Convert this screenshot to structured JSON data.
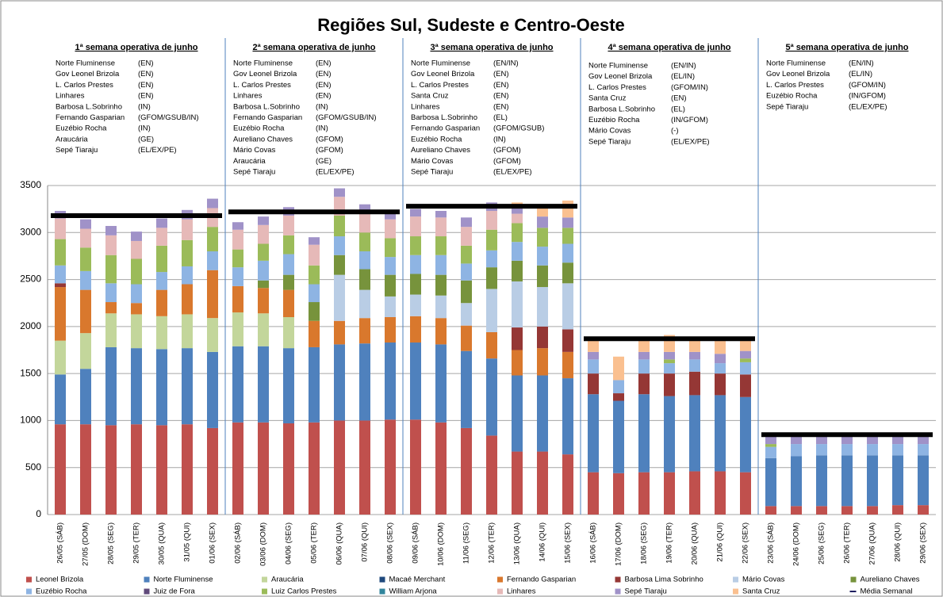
{
  "chart_data": {
    "type": "stacked_bar",
    "title": "Regiões Sul, Sudeste e Centro-Oeste",
    "categories": [
      "26/05 (SÁB)",
      "27/05 (DOM)",
      "28/05 (SEG)",
      "29/05 (TER)",
      "30/05 (QUA)",
      "31/05 (QUI)",
      "01/06 (SEX)",
      "02/06 (SÁB)",
      "03/06 (DOM)",
      "04/06 (SEG)",
      "05/06 (TER)",
      "06/06 (QUA)",
      "07/06 (QUI)",
      "08/06 (SEX)",
      "09/06 (SÁB)",
      "10/06 (DOM)",
      "11/06 (SEG)",
      "12/06 (TER)",
      "13/06 (QUA)",
      "14/06 (QUI)",
      "15/06 (SEX)",
      "16/06 (SÁB)",
      "17/06 (DOM)",
      "18/06 (SEG)",
      "19/06 (TER)",
      "20/06 (QUA)",
      "21/06 (QUI)",
      "22/06 (SEX)",
      "23/06 (SÁB)",
      "24/06 (DOM)",
      "25/06 (SEG)",
      "26/06 (TER)",
      "27/06 (QUA)",
      "28/06 (QUI)",
      "29/06 (SEX)"
    ],
    "series": [
      {
        "name": "Leonel Brizola",
        "color": "#c0504d",
        "values": [
          960,
          960,
          950,
          960,
          950,
          960,
          920,
          980,
          980,
          970,
          980,
          1000,
          1000,
          1010,
          1010,
          980,
          920,
          840,
          670,
          670,
          640,
          450,
          440,
          450,
          450,
          460,
          460,
          450,
          90,
          90,
          90,
          90,
          90,
          100,
          100
        ]
      },
      {
        "name": "Norte Fluminense",
        "color": "#4f81bd",
        "values": [
          530,
          590,
          830,
          810,
          810,
          810,
          810,
          810,
          810,
          800,
          800,
          810,
          820,
          820,
          820,
          830,
          820,
          820,
          810,
          810,
          810,
          830,
          770,
          830,
          810,
          810,
          810,
          800,
          510,
          530,
          540,
          540,
          540,
          530,
          530
        ]
      },
      {
        "name": "Araucária",
        "color": "#c3d69b",
        "values": [
          360,
          380,
          360,
          360,
          350,
          360,
          360,
          360,
          350,
          330,
          0,
          0,
          0,
          0,
          0,
          0,
          0,
          0,
          0,
          0,
          0,
          0,
          0,
          0,
          0,
          0,
          0,
          0,
          0,
          0,
          0,
          0,
          0,
          0,
          0
        ]
      },
      {
        "name": "Macaé Merchant",
        "color": "#1f497d",
        "values": [
          0,
          0,
          0,
          0,
          0,
          0,
          0,
          0,
          0,
          0,
          0,
          0,
          0,
          0,
          0,
          0,
          0,
          0,
          0,
          0,
          0,
          0,
          0,
          0,
          0,
          0,
          0,
          0,
          0,
          0,
          0,
          0,
          0,
          0,
          0
        ]
      },
      {
        "name": "Fernando Gasparian",
        "color": "#d9782d",
        "values": [
          570,
          460,
          120,
          120,
          280,
          320,
          510,
          280,
          270,
          290,
          280,
          250,
          270,
          270,
          280,
          280,
          270,
          280,
          270,
          290,
          280,
          0,
          0,
          0,
          0,
          0,
          0,
          0,
          0,
          0,
          0,
          0,
          0,
          0,
          0
        ]
      },
      {
        "name": "Barbosa Lima Sobrinho",
        "color": "#953735",
        "values": [
          40,
          0,
          0,
          0,
          0,
          0,
          0,
          0,
          0,
          0,
          0,
          0,
          0,
          0,
          0,
          0,
          0,
          0,
          240,
          230,
          240,
          220,
          80,
          220,
          240,
          250,
          230,
          240,
          0,
          0,
          0,
          0,
          0,
          0,
          0
        ]
      },
      {
        "name": "Mário Covas",
        "color": "#b9cde5",
        "values": [
          0,
          0,
          0,
          0,
          0,
          0,
          0,
          0,
          0,
          0,
          0,
          490,
          300,
          220,
          230,
          240,
          240,
          460,
          490,
          420,
          490,
          0,
          0,
          0,
          0,
          0,
          0,
          0,
          0,
          0,
          0,
          0,
          0,
          0,
          0
        ]
      },
      {
        "name": "Aureliano Chaves",
        "color": "#77933c",
        "values": [
          0,
          0,
          0,
          0,
          0,
          0,
          0,
          0,
          80,
          160,
          200,
          210,
          220,
          230,
          220,
          220,
          240,
          230,
          220,
          230,
          220,
          0,
          0,
          0,
          0,
          0,
          0,
          0,
          0,
          0,
          0,
          0,
          0,
          0,
          0
        ]
      },
      {
        "name": "Euzébio Rocha",
        "color": "#8eb4e3",
        "values": [
          190,
          200,
          200,
          200,
          190,
          190,
          200,
          200,
          210,
          220,
          190,
          200,
          190,
          190,
          200,
          210,
          180,
          180,
          200,
          200,
          200,
          150,
          140,
          150,
          110,
          130,
          110,
          130,
          120,
          130,
          120,
          120,
          120,
          120,
          120
        ]
      },
      {
        "name": "Juiz de Fora",
        "color": "#604a7b",
        "values": [
          0,
          0,
          0,
          0,
          0,
          0,
          0,
          0,
          0,
          0,
          0,
          0,
          0,
          0,
          0,
          0,
          0,
          0,
          0,
          0,
          0,
          0,
          0,
          0,
          0,
          0,
          0,
          0,
          0,
          0,
          0,
          0,
          0,
          0,
          0
        ]
      },
      {
        "name": "Luiz Carlos Prestes",
        "color": "#9bbb59",
        "values": [
          280,
          250,
          300,
          270,
          280,
          280,
          260,
          190,
          180,
          200,
          200,
          220,
          200,
          200,
          200,
          200,
          190,
          220,
          200,
          200,
          170,
          0,
          0,
          0,
          40,
          0,
          0,
          40,
          30,
          0,
          0,
          0,
          0,
          0,
          0
        ]
      },
      {
        "name": "William Arjona",
        "color": "#31859c",
        "values": [
          0,
          0,
          0,
          0,
          0,
          0,
          0,
          0,
          0,
          0,
          0,
          0,
          0,
          0,
          0,
          0,
          0,
          0,
          0,
          0,
          0,
          0,
          0,
          0,
          0,
          0,
          0,
          0,
          0,
          0,
          0,
          0,
          0,
          0,
          0
        ]
      },
      {
        "name": "Linhares",
        "color": "#e6b9b8",
        "values": [
          220,
          200,
          210,
          190,
          190,
          220,
          200,
          210,
          200,
          210,
          220,
          200,
          210,
          200,
          210,
          200,
          200,
          200,
          100,
          0,
          0,
          0,
          0,
          0,
          0,
          0,
          0,
          0,
          0,
          0,
          0,
          0,
          0,
          0,
          0
        ]
      },
      {
        "name": "Sepé Tiaraju",
        "color": "#a092c8",
        "values": [
          80,
          100,
          100,
          100,
          100,
          100,
          100,
          80,
          90,
          90,
          80,
          90,
          90,
          70,
          80,
          70,
          100,
          90,
          60,
          120,
          110,
          80,
          0,
          80,
          80,
          80,
          100,
          80,
          80,
          80,
          80,
          80,
          80,
          80,
          80
        ]
      },
      {
        "name": "Santa Cruz",
        "color": "#fac090",
        "values": [
          0,
          0,
          0,
          0,
          0,
          0,
          0,
          0,
          0,
          0,
          0,
          0,
          0,
          0,
          0,
          0,
          0,
          0,
          60,
          130,
          180,
          120,
          250,
          120,
          180,
          120,
          140,
          110,
          0,
          0,
          0,
          0,
          0,
          0,
          0
        ]
      }
    ],
    "mean_line": {
      "name": "Média Semanal",
      "color": "#000000",
      "values": [
        3180,
        3220,
        3280,
        1870,
        850
      ]
    },
    "ylim": [
      0,
      3500
    ],
    "yticks": [
      0,
      500,
      1000,
      1500,
      2000,
      2500,
      3000,
      3500
    ],
    "grid": true,
    "weeks": [
      {
        "title": "1ª semana operativa de junho",
        "plants": [
          [
            "Norte Fluminense",
            "(EN)"
          ],
          [
            "Gov Leonel Brizola",
            "(EN)"
          ],
          [
            "L. Carlos Prestes",
            "(EN)"
          ],
          [
            "Linhares",
            "(EN)"
          ],
          [
            "Barbosa L.Sobrinho",
            "(IN)"
          ],
          [
            "Fernando Gasparian",
            "(GFOM/GSUB/IN)"
          ],
          [
            "Euzébio Rocha",
            "(IN)"
          ],
          [
            "Araucária",
            "(GE)"
          ],
          [
            "Sepé Tiaraju",
            "(EL/EX/PE)"
          ]
        ]
      },
      {
        "title": "2ª semana operativa de junho",
        "plants": [
          [
            "Norte Fluminense",
            "(EN)"
          ],
          [
            "Gov Leonel Brizola",
            "(EN)"
          ],
          [
            "L. Carlos Prestes",
            "(EN)"
          ],
          [
            "Linhares",
            "(EN)"
          ],
          [
            "Barbosa L.Sobrinho",
            "(IN)"
          ],
          [
            "Fernando Gasparian",
            "(GFOM/GSUB/IN)"
          ],
          [
            "Euzébio Rocha",
            "(IN)"
          ],
          [
            "Aureliano Chaves",
            "(GFOM)"
          ],
          [
            "Mário Covas",
            "(GFOM)"
          ],
          [
            "Araucária",
            "(GE)"
          ],
          [
            "Sepé Tiaraju",
            "(EL/EX/PE)"
          ]
        ]
      },
      {
        "title": "3ª semana operativa de junho",
        "plants": [
          [
            "Norte Fluminense",
            "(EN/IN)"
          ],
          [
            "Gov Leonel Brizola",
            "(EN)"
          ],
          [
            "L. Carlos Prestes",
            "(EN)"
          ],
          [
            "Santa Cruz",
            "(EN)"
          ],
          [
            "Linhares",
            "(EN)"
          ],
          [
            "Barbosa L.Sobrinho",
            "(EL)"
          ],
          [
            "Fernando Gasparian",
            "(GFOM/GSUB)"
          ],
          [
            "Euzébio Rocha",
            "(IN)"
          ],
          [
            "Aureliano Chaves",
            "(GFOM)"
          ],
          [
            "Mário Covas",
            "(GFOM)"
          ],
          [
            "Sepé Tiaraju",
            "(EL/EX/PE)"
          ]
        ]
      },
      {
        "title": "4ª semana operativa de junho",
        "plants": [
          [
            "Norte Fluminense",
            "(EN/IN)"
          ],
          [
            "Gov Leonel Brizola",
            "(EL/IN)"
          ],
          [
            "L. Carlos Prestes",
            "(GFOM/IN)"
          ],
          [
            "Santa Cruz",
            "(EN)"
          ],
          [
            "Barbosa L.Sobrinho",
            "(EL)"
          ],
          [
            "Euzébio Rocha",
            "(IN/GFOM)"
          ],
          [
            "Mário Covas",
            "(-)"
          ],
          [
            "Sepé Tiaraju",
            "(EL/EX/PE)"
          ]
        ]
      },
      {
        "title": "5ª semana operativa de junho",
        "plants": [
          [
            "Norte Fluminense",
            "(EN/IN)"
          ],
          [
            "Gov Leonel Brizola",
            "(EL/IN)"
          ],
          [
            "L. Carlos Prestes",
            "(GFOM/IN)"
          ],
          [
            "Euzébio Rocha",
            "(IN/GFOM)"
          ],
          [
            "Sepé Tiaraju",
            "(EL/EX/PE)"
          ]
        ]
      }
    ]
  }
}
